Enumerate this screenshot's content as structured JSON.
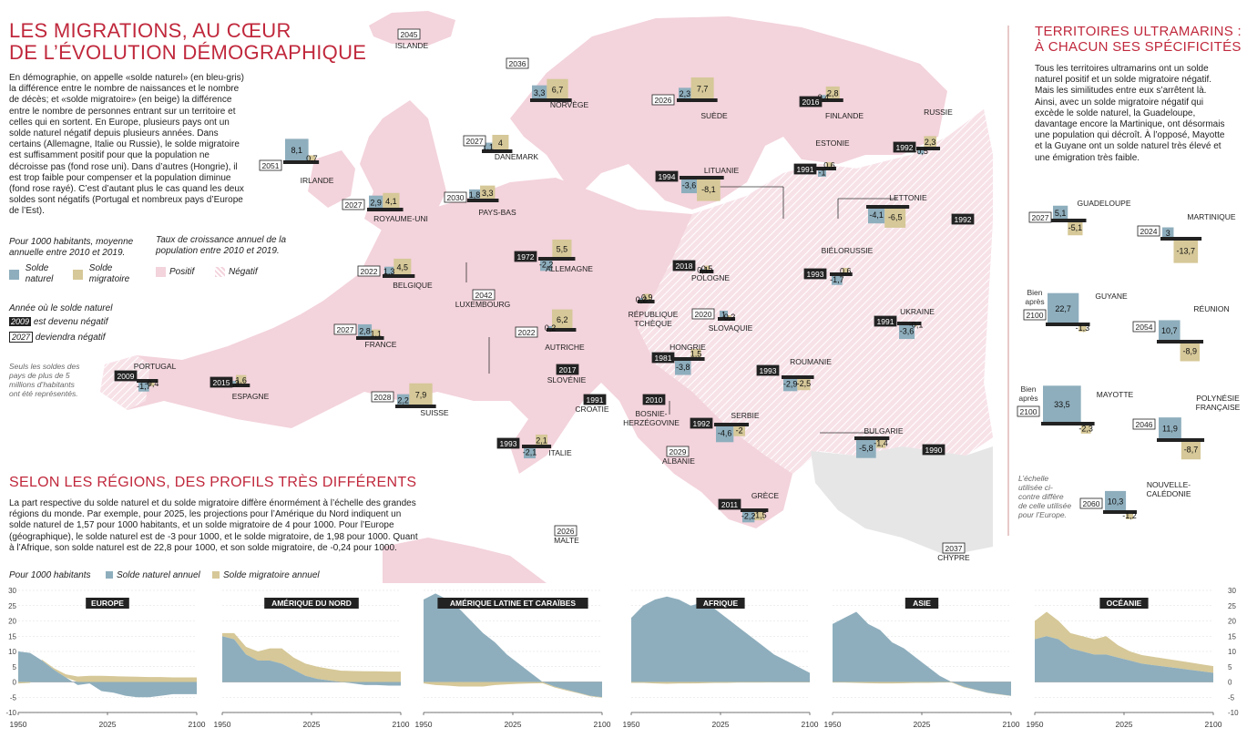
{
  "title_line1": "LES MIGRATIONS, AU CŒUR",
  "title_line2": "DE L’ÉVOLUTION DÉMOGRAPHIQUE",
  "intro": "En démographie, on appelle «solde naturel» (en bleu-gris) la différence entre le nombre de naissances et le nombre de décès; et «solde migratoire» (en beige) la différence entre le nombre de personnes entrant sur un territoire et celles qui en sortent. En Europe, plusieurs pays ont un solde naturel négatif depuis plusieurs années. Dans certains (Allemagne, Italie ou Russie), le solde migratoire est suffisamment positif pour que la population ne décroisse pas (fond rose uni). Dans d’autres (Hongrie), il est trop faible pour compenser et la population diminue (fond rose rayé). C’est d’autant plus le cas quand les deux soldes sont négatifs (Portugal et nombreux pays d’Europe de l’Est).",
  "legend": {
    "per1000": "Pour 1000 habitants, moyenne annuelle entre 2010 et 2019.",
    "naturel_l1": "Solde",
    "naturel_l2": "naturel",
    "migratoire_l1": "Solde",
    "migratoire_l2": "migratoire",
    "growth": "Taux de croissance annuel de la population entre 2010 et 2019.",
    "positif": "Positif",
    "negatif": "Négatif",
    "year_title": "Année où le solde naturel",
    "year_past_box": "2009",
    "year_past": "est devenu négatif",
    "year_future_box": "2027",
    "year_future": "deviendra négatif",
    "note": "Seuls les soldes des pays de plus de 5 millions d’habitants ont été représentés."
  },
  "sec2_title": "SELON LES RÉGIONS, DES PROFILS TRÈS DIFFÉRENTS",
  "sec2_text": "La part respective du solde naturel et du solde migratoire diffère énormément à l’échelle des grandes régions du monde. Par exemple, pour 2025, les projections pour l’Amérique du Nord indiquent un solde naturel de 1,57 pour 1000 habitants, et un solde migratoire de 4 pour 1000. Pour l’Europe (géographique), le solde naturel est de -3 pour 1000, et le solde migratoire, de 1,98 pour 1000. Quant à l’Afrique, son solde naturel est de 22,8 pour 1000, et son solde migratoire, de -0,24 pour 1000.",
  "right_title1": "TERRITOIRES ULTRAMARINS :",
  "right_title2": "À CHACUN SES SPÉCIFICITÉS",
  "right_text": "Tous les territoires ultramarins ont un solde naturel positif et un solde migratoire négatif. Mais les similitudes entre eux s’arrêtent là. Ainsi, avec un solde migratoire négatif qui excède le solde naturel, la Guadeloupe, davantage encore la Martinique, ont désormais une population qui décroît. À l’opposé, Mayotte et la Guyane ont un solde naturel très élevé et une émigration très faible.",
  "right_note": "L’échelle utilisée ci-contre diffère de celle utilisée pour l’Europe.",
  "colors": {
    "naturel": "#8eaebd",
    "migratoire": "#d6c898",
    "land_pos": "#f3d3dc",
    "land_neg": "#f6dde4",
    "accent": "#c0283c",
    "bar": "#222222"
  },
  "chart_data": {
    "type": "bar",
    "title": "",
    "unit": "Pour 1000 habitants, moyenne annuelle entre 2010 et 2019",
    "series_names": [
      "Solde naturel",
      "Solde migratoire"
    ],
    "countries": [
      {
        "name": "ISLANDE",
        "year": "2045",
        "future": true
      },
      {
        "name": "NORVÈGE",
        "year": "2036",
        "future": true,
        "nat": "3,3",
        "mig": "6,7"
      },
      {
        "name": "SUÈDE",
        "year": "2026",
        "future": true,
        "nat": "2,3",
        "mig": "7,7"
      },
      {
        "name": "FINLANDE",
        "year": "2016",
        "future": false,
        "nat": "0,4",
        "mig": "2,8"
      },
      {
        "name": "RUSSIE",
        "year": "1992",
        "future": false,
        "nat": "-0,5",
        "mig": "2,3"
      },
      {
        "name": "DANEMARK",
        "year": "2027",
        "future": true,
        "nat": "1,1",
        "mig": "4"
      },
      {
        "name": "IRLANDE",
        "year": "2051",
        "future": true,
        "nat": "8,1",
        "mig": "0,7"
      },
      {
        "name": "ROYAUME-UNI",
        "year": "2027",
        "future": true,
        "nat": "2,9",
        "mig": "4,1"
      },
      {
        "name": "PAYS-BAS",
        "year": "2030",
        "future": true,
        "nat": "1,8",
        "mig": "3,3"
      },
      {
        "name": "ESTONIE",
        "year": "1991",
        "future": false,
        "nat": "-1",
        "mig": "0,6"
      },
      {
        "name": "LITUANIE",
        "year": "1994",
        "future": false,
        "nat": "-3,6",
        "mig": "-8,1"
      },
      {
        "name": "LETTONIE",
        "year": "1992",
        "future": false,
        "nat": "-4,1",
        "mig": "-6,5"
      },
      {
        "name": "BELGIQUE",
        "year": "2022",
        "future": true,
        "nat": "1,3",
        "mig": "4,5"
      },
      {
        "name": "LUXEMBOURG",
        "year": "2042",
        "future": true
      },
      {
        "name": "ALLEMAGNE",
        "year": "1972",
        "future": false,
        "nat": "-2,2",
        "mig": "5,5"
      },
      {
        "name": "POLOGNE",
        "year": "2018",
        "future": false,
        "nat": "0,1",
        "mig": "0,5"
      },
      {
        "name": "BIÉLORUSSIE",
        "year": "1993",
        "future": false,
        "nat": "-1,7",
        "mig": "0,6"
      },
      {
        "name": "RÉPUBLIQUE TCHÈQUE",
        "nat": "0,2",
        "mig": "0,9"
      },
      {
        "name": "SLOVAQUIE",
        "year": "2020",
        "future": true,
        "nat": "1",
        "mig": "0,2"
      },
      {
        "name": "UKRAINE",
        "year": "1991",
        "future": false,
        "nat": "-3,6",
        "mig": "-0,1"
      },
      {
        "name": "FRANCE",
        "year": "2027",
        "future": true,
        "nat": "2,8",
        "mig": "1,1"
      },
      {
        "name": "AUTRICHE",
        "year": "2022",
        "future": true,
        "nat": "0,2",
        "mig": "6,2"
      },
      {
        "name": "HONGRIE",
        "year": "1981",
        "future": false,
        "nat": "-3,8",
        "mig": "1,5"
      },
      {
        "name": "ROUMANIE",
        "year": "1993",
        "future": false,
        "nat": "-2,9",
        "mig": "-2,5"
      },
      {
        "name": "PORTUGAL",
        "year": "2009",
        "future": false,
        "nat": "-1,7",
        "mig": "-0,4"
      },
      {
        "name": "ESPAGNE",
        "year": "2015",
        "future": false,
        "nat": "0,3",
        "mig": "1,6"
      },
      {
        "name": "SUISSE",
        "year": "2028",
        "future": true,
        "nat": "2,2",
        "mig": "7,9"
      },
      {
        "name": "SLOVÉNIE",
        "year": "2017",
        "future": false
      },
      {
        "name": "CROATIE",
        "year": "1991",
        "future": false
      },
      {
        "name": "BOSNIE-HERZÉGOVINE",
        "year": "2010",
        "future": false
      },
      {
        "name": "SERBIE",
        "year": "1992",
        "future": false,
        "nat": "-4,6",
        "mig": "-2"
      },
      {
        "name": "BULGARIE",
        "year": "1990",
        "future": false,
        "nat": "-5,8",
        "mig": "-1,4"
      },
      {
        "name": "ITALIE",
        "year": "1993",
        "future": false,
        "nat": "-2,1",
        "mig": "2,1"
      },
      {
        "name": "ALBANIE",
        "year": "2029",
        "future": true
      },
      {
        "name": "GRÈCE",
        "year": "2011",
        "future": false,
        "nat": "-2,2",
        "mig": "-1,5"
      },
      {
        "name": "MALTE",
        "year": "2026",
        "future": true
      },
      {
        "name": "CHYPRE",
        "year": "2037",
        "future": true
      }
    ],
    "overseas": [
      {
        "name": "GUADELOUPE",
        "year": "2027",
        "future": true,
        "nat": "5,1",
        "mig": "-5,1"
      },
      {
        "name": "MARTINIQUE",
        "year": "2024",
        "future": true,
        "nat": "3",
        "mig": "-13,7"
      },
      {
        "name": "GUYANE",
        "year": "2100",
        "prefix": "Bien après",
        "future": true,
        "nat": "22,7",
        "mig": "-1,3"
      },
      {
        "name": "RÉUNION",
        "year": "2054",
        "future": true,
        "nat": "10,7",
        "mig": "-8,9"
      },
      {
        "name": "MAYOTTE",
        "year": "2100",
        "prefix": "Bien après",
        "future": true,
        "nat": "33,5",
        "mig": "-2,3"
      },
      {
        "name": "POLYNÉSIE FRANÇAISE",
        "year": "2046",
        "future": true,
        "nat": "11,9",
        "mig": "-8,7"
      },
      {
        "name": "NOUVELLE-CALÉDONIE",
        "year": "2060",
        "future": true,
        "nat": "10,3",
        "mig": "-1,2"
      }
    ],
    "regions_chart": {
      "type": "area",
      "ylabel": "Pour 1000 habitants",
      "legend": [
        "Solde naturel annuel",
        "Solde migratoire annuel"
      ],
      "yticks": [
        "30",
        "25",
        "20",
        "15",
        "10",
        "5",
        "0",
        "-5",
        "-10"
      ],
      "ylim": [
        -10,
        30
      ],
      "xticks": [
        "1950",
        "2025",
        "2100"
      ],
      "xlim": [
        1950,
        2100
      ],
      "regions": [
        {
          "name": "EUROPE",
          "x": [
            1950,
            1960,
            1970,
            1980,
            1990,
            2000,
            2010,
            2020,
            2030,
            2040,
            2050,
            2060,
            2070,
            2080,
            2090,
            2100
          ],
          "nat": [
            10,
            9.5,
            7,
            4,
            1.5,
            -1,
            -0.5,
            -3,
            -3.5,
            -4.5,
            -5,
            -5,
            -4.5,
            -4,
            -4,
            -4
          ],
          "mig": [
            -0.5,
            -0.3,
            0.3,
            0.5,
            1,
            1.8,
            2,
            2,
            1.9,
            1.8,
            1.7,
            1.6,
            1.6,
            1.5,
            1.5,
            1.5
          ]
        },
        {
          "name": "AMÉRIQUE DU NORD",
          "x": [
            1950,
            1960,
            1970,
            1980,
            1990,
            2000,
            2010,
            2020,
            2030,
            2040,
            2050,
            2060,
            2070,
            2080,
            2090,
            2100
          ],
          "nat": [
            15,
            14,
            9,
            7,
            7,
            6,
            4,
            2,
            1,
            0.5,
            0,
            -0.5,
            -1,
            -1,
            -1.2,
            -1.2
          ],
          "mig": [
            1,
            2,
            2.5,
            3,
            4,
            5,
            4,
            4,
            4,
            3.8,
            3.7,
            3.6,
            3.5,
            3.5,
            3.4,
            3.4
          ]
        },
        {
          "name": "AMÉRIQUE LATINE ET CARAÏBES",
          "x": [
            1950,
            1960,
            1970,
            1980,
            1990,
            2000,
            2010,
            2020,
            2030,
            2040,
            2050,
            2060,
            2070,
            2080,
            2090,
            2100
          ],
          "nat": [
            27,
            29,
            27,
            24,
            20,
            16,
            13,
            9,
            6,
            3,
            0,
            -1.5,
            -2.5,
            -3.5,
            -4.5,
            -5
          ],
          "mig": [
            -0.5,
            -1,
            -1.2,
            -1.5,
            -1.5,
            -1.5,
            -1,
            -0.8,
            -0.6,
            -0.5,
            -0.4,
            -0.3,
            -0.3,
            -0.2,
            -0.2,
            -0.2
          ]
        },
        {
          "name": "AFRIQUE",
          "x": [
            1950,
            1960,
            1970,
            1980,
            1990,
            2000,
            2010,
            2020,
            2030,
            2040,
            2050,
            2060,
            2070,
            2080,
            2090,
            2100
          ],
          "nat": [
            21,
            25,
            27,
            28,
            27,
            25,
            26,
            24,
            21,
            18,
            15,
            12,
            9,
            7,
            5,
            3
          ],
          "mig": [
            -0.3,
            -0.3,
            -0.5,
            -0.6,
            -0.5,
            -0.5,
            -0.4,
            -0.3,
            -0.3,
            -0.2,
            -0.2,
            -0.2,
            -0.1,
            -0.1,
            -0.1,
            -0.1
          ]
        },
        {
          "name": "ASIE",
          "x": [
            1950,
            1960,
            1970,
            1980,
            1990,
            2000,
            2010,
            2020,
            2030,
            2040,
            2050,
            2060,
            2070,
            2080,
            2090,
            2100
          ],
          "nat": [
            19,
            21,
            23,
            19,
            17,
            13,
            11,
            8,
            5,
            2,
            0,
            -1.5,
            -2.5,
            -3.5,
            -4,
            -4.5
          ],
          "mig": [
            -0.2,
            -0.2,
            -0.3,
            -0.4,
            -0.5,
            -0.5,
            -0.4,
            -0.3,
            -0.3,
            -0.2,
            -0.2,
            -0.2,
            -0.1,
            -0.1,
            -0.1,
            -0.1
          ]
        },
        {
          "name": "OCÉANIE",
          "x": [
            1950,
            1960,
            1970,
            1980,
            1990,
            2000,
            2010,
            2020,
            2030,
            2040,
            2050,
            2060,
            2070,
            2080,
            2090,
            2100
          ],
          "nat": [
            14,
            15,
            14,
            11,
            10,
            9,
            9,
            8,
            7,
            6,
            5.5,
            5,
            4.5,
            4,
            3.5,
            3
          ],
          "mig": [
            6,
            8,
            6,
            5,
            5,
            5,
            6,
            4,
            3,
            2.8,
            2.7,
            2.6,
            2.5,
            2.4,
            2.3,
            2.2
          ]
        }
      ]
    }
  }
}
